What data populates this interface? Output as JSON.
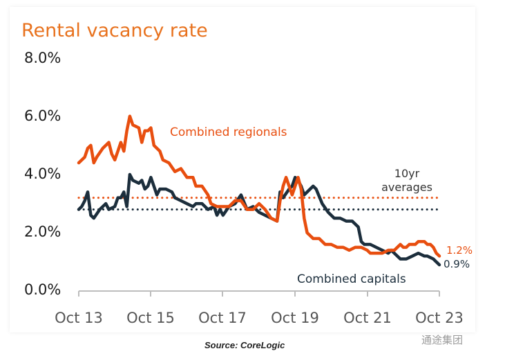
{
  "source": "Source: CoreLogic",
  "watermark": "通途集团",
  "chart_data": {
    "type": "line",
    "title": "Rental vacancy rate",
    "y_ticks": [
      "8.0%",
      "6.0%",
      "4.0%",
      "2.0%",
      "0.0%"
    ],
    "y_tick_values": [
      8,
      6,
      4,
      2,
      0
    ],
    "ylim": [
      0,
      8
    ],
    "x_ticks": [
      "Oct 13",
      "Oct 15",
      "Oct 17",
      "Oct 19",
      "Oct 21",
      "Oct 23"
    ],
    "x_tick_values": [
      "2013-10",
      "2015-10",
      "2017-10",
      "2019-10",
      "2021-10",
      "2023-10"
    ],
    "x_range": [
      "2013-10",
      "2023-10"
    ],
    "grid": false,
    "colors": {
      "regionals": "#e84e0f",
      "capitals": "#1c2e3c"
    },
    "averages_label": [
      "10yr",
      "averages"
    ],
    "series": [
      {
        "name": "Combined regionals",
        "end_label": "1.2%",
        "average": 3.2,
        "points": [
          [
            "2013-10",
            4.4
          ],
          [
            "2013-12",
            4.6
          ],
          [
            "2014-01",
            4.9
          ],
          [
            "2014-02",
            5.0
          ],
          [
            "2014-03",
            4.4
          ],
          [
            "2014-04",
            4.6
          ],
          [
            "2014-06",
            4.9
          ],
          [
            "2014-08",
            5.1
          ],
          [
            "2014-09",
            4.7
          ],
          [
            "2014-10",
            4.5
          ],
          [
            "2014-11",
            4.8
          ],
          [
            "2014-12",
            5.1
          ],
          [
            "2015-01",
            4.8
          ],
          [
            "2015-02",
            5.5
          ],
          [
            "2015-03",
            6.0
          ],
          [
            "2015-04",
            5.7
          ],
          [
            "2015-06",
            5.6
          ],
          [
            "2015-07",
            5.1
          ],
          [
            "2015-08",
            5.5
          ],
          [
            "2015-09",
            5.5
          ],
          [
            "2015-10",
            5.6
          ],
          [
            "2015-11",
            5.0
          ],
          [
            "2015-12",
            4.9
          ],
          [
            "2016-01",
            4.8
          ],
          [
            "2016-02",
            4.5
          ],
          [
            "2016-04",
            4.4
          ],
          [
            "2016-06",
            4.1
          ],
          [
            "2016-08",
            4.2
          ],
          [
            "2016-10",
            3.9
          ],
          [
            "2016-12",
            3.9
          ],
          [
            "2017-01",
            3.6
          ],
          [
            "2017-03",
            3.6
          ],
          [
            "2017-05",
            3.3
          ],
          [
            "2017-06",
            3.0
          ],
          [
            "2017-08",
            2.9
          ],
          [
            "2017-10",
            2.9
          ],
          [
            "2017-12",
            2.9
          ],
          [
            "2018-02",
            3.1
          ],
          [
            "2018-04",
            3.1
          ],
          [
            "2018-06",
            2.8
          ],
          [
            "2018-08",
            2.8
          ],
          [
            "2018-10",
            3.0
          ],
          [
            "2018-12",
            2.8
          ],
          [
            "2019-02",
            2.5
          ],
          [
            "2019-04",
            2.4
          ],
          [
            "2019-05",
            3.1
          ],
          [
            "2019-06",
            3.6
          ],
          [
            "2019-07",
            3.9
          ],
          [
            "2019-09",
            3.3
          ],
          [
            "2019-10",
            3.6
          ],
          [
            "2019-11",
            3.9
          ],
          [
            "2019-12",
            3.5
          ],
          [
            "2020-01",
            2.5
          ],
          [
            "2020-02",
            2.0
          ],
          [
            "2020-04",
            1.8
          ],
          [
            "2020-06",
            1.8
          ],
          [
            "2020-08",
            1.6
          ],
          [
            "2020-10",
            1.6
          ],
          [
            "2020-12",
            1.5
          ],
          [
            "2021-02",
            1.5
          ],
          [
            "2021-04",
            1.4
          ],
          [
            "2021-06",
            1.5
          ],
          [
            "2021-08",
            1.5
          ],
          [
            "2021-10",
            1.4
          ],
          [
            "2021-11",
            1.3
          ],
          [
            "2022-01",
            1.3
          ],
          [
            "2022-03",
            1.3
          ],
          [
            "2022-05",
            1.4
          ],
          [
            "2022-07",
            1.4
          ],
          [
            "2022-09",
            1.6
          ],
          [
            "2022-10",
            1.5
          ],
          [
            "2022-11",
            1.5
          ],
          [
            "2022-12",
            1.6
          ],
          [
            "2023-02",
            1.6
          ],
          [
            "2023-03",
            1.7
          ],
          [
            "2023-05",
            1.7
          ],
          [
            "2023-06",
            1.6
          ],
          [
            "2023-07",
            1.6
          ],
          [
            "2023-08",
            1.5
          ],
          [
            "2023-09",
            1.3
          ],
          [
            "2023-10",
            1.2
          ]
        ]
      },
      {
        "name": "Combined capitals",
        "end_label": "0.9%",
        "average": 2.8,
        "points": [
          [
            "2013-10",
            2.8
          ],
          [
            "2013-11",
            2.9
          ],
          [
            "2013-12",
            3.1
          ],
          [
            "2014-01",
            3.4
          ],
          [
            "2014-02",
            2.6
          ],
          [
            "2014-03",
            2.5
          ],
          [
            "2014-05",
            2.8
          ],
          [
            "2014-07",
            3.0
          ],
          [
            "2014-08",
            2.8
          ],
          [
            "2014-10",
            2.9
          ],
          [
            "2014-11",
            3.2
          ],
          [
            "2014-12",
            3.2
          ],
          [
            "2015-01",
            3.4
          ],
          [
            "2015-02",
            2.9
          ],
          [
            "2015-03",
            4.0
          ],
          [
            "2015-04",
            3.8
          ],
          [
            "2015-06",
            3.7
          ],
          [
            "2015-07",
            3.8
          ],
          [
            "2015-08",
            3.5
          ],
          [
            "2015-09",
            3.6
          ],
          [
            "2015-10",
            3.9
          ],
          [
            "2015-12",
            3.3
          ],
          [
            "2016-01",
            3.5
          ],
          [
            "2016-03",
            3.5
          ],
          [
            "2016-05",
            3.4
          ],
          [
            "2016-06",
            3.2
          ],
          [
            "2016-08",
            3.1
          ],
          [
            "2016-10",
            3.0
          ],
          [
            "2016-12",
            2.9
          ],
          [
            "2017-01",
            3.0
          ],
          [
            "2017-03",
            3.0
          ],
          [
            "2017-05",
            2.8
          ],
          [
            "2017-07",
            2.9
          ],
          [
            "2017-08",
            2.6
          ],
          [
            "2017-09",
            2.8
          ],
          [
            "2017-10",
            2.6
          ],
          [
            "2017-12",
            2.9
          ],
          [
            "2018-02",
            3.0
          ],
          [
            "2018-04",
            3.3
          ],
          [
            "2018-06",
            2.8
          ],
          [
            "2018-08",
            2.9
          ],
          [
            "2018-10",
            2.7
          ],
          [
            "2018-12",
            2.6
          ],
          [
            "2019-02",
            2.5
          ],
          [
            "2019-04",
            2.4
          ],
          [
            "2019-05",
            3.4
          ],
          [
            "2019-06",
            3.2
          ],
          [
            "2019-08",
            3.5
          ],
          [
            "2019-09",
            3.6
          ],
          [
            "2019-10",
            3.9
          ],
          [
            "2019-11",
            3.8
          ],
          [
            "2019-12",
            3.6
          ],
          [
            "2020-01",
            3.3
          ],
          [
            "2020-02",
            3.4
          ],
          [
            "2020-04",
            3.6
          ],
          [
            "2020-05",
            3.5
          ],
          [
            "2020-07",
            3.0
          ],
          [
            "2020-09",
            2.7
          ],
          [
            "2020-11",
            2.5
          ],
          [
            "2021-01",
            2.5
          ],
          [
            "2021-03",
            2.4
          ],
          [
            "2021-05",
            2.4
          ],
          [
            "2021-07",
            2.2
          ],
          [
            "2021-08",
            1.7
          ],
          [
            "2021-09",
            1.6
          ],
          [
            "2021-11",
            1.6
          ],
          [
            "2022-01",
            1.5
          ],
          [
            "2022-03",
            1.4
          ],
          [
            "2022-05",
            1.3
          ],
          [
            "2022-06",
            1.4
          ],
          [
            "2022-07",
            1.3
          ],
          [
            "2022-09",
            1.1
          ],
          [
            "2022-11",
            1.1
          ],
          [
            "2023-01",
            1.2
          ],
          [
            "2023-03",
            1.3
          ],
          [
            "2023-05",
            1.2
          ],
          [
            "2023-06",
            1.2
          ],
          [
            "2023-08",
            1.1
          ],
          [
            "2023-09",
            1.0
          ],
          [
            "2023-10",
            0.9
          ]
        ]
      }
    ]
  }
}
